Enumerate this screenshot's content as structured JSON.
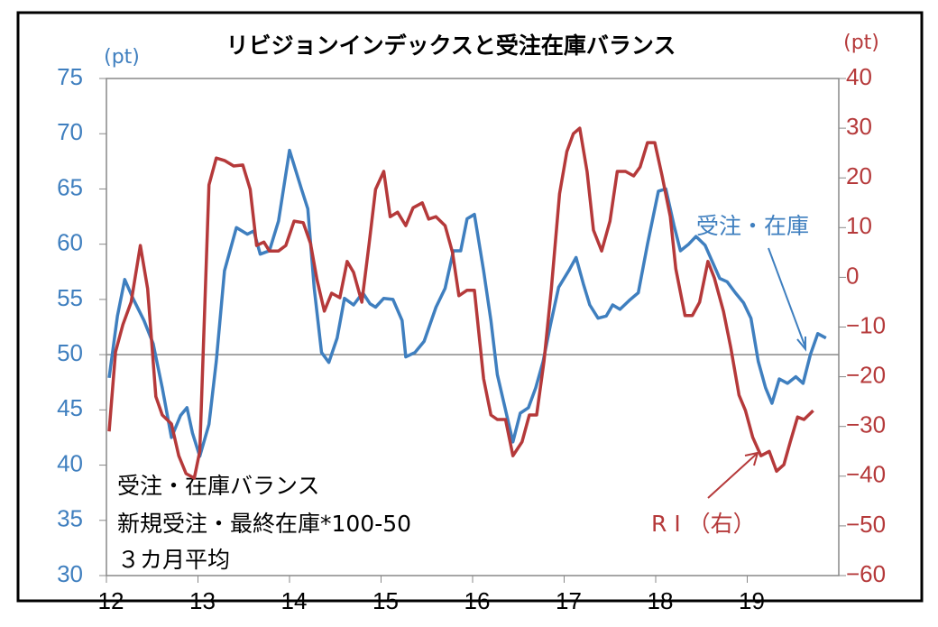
{
  "chart_data": {
    "type": "line",
    "title": "リビジョンインデックスと受注在庫バランス",
    "y_unit": "(pt)",
    "y2_unit": "(pt)",
    "xlim": [
      12,
      20
    ],
    "xticks": [
      12,
      13,
      14,
      15,
      16,
      17,
      18,
      19
    ],
    "ylim": [
      30,
      75
    ],
    "yticks": [
      30,
      35,
      40,
      45,
      50,
      55,
      60,
      65,
      70,
      75
    ],
    "y2lim": [
      -60,
      40
    ],
    "y2ticks": [
      {
        "value": -60,
        "label": "−60"
      },
      {
        "value": -50,
        "label": "−50"
      },
      {
        "value": -40,
        "label": "−40"
      },
      {
        "value": -30,
        "label": "−30"
      },
      {
        "value": -20,
        "label": "−20"
      },
      {
        "value": -10,
        "label": "−10"
      },
      0,
      10,
      20,
      30,
      40
    ],
    "reference_line": 50,
    "annotations": [
      "受注・在庫バランス",
      "新規受注・最終在庫*100-50",
      "３カ月平均"
    ],
    "series": [
      {
        "name": "受注・在庫",
        "color": "#3f7fbf",
        "axis": "y",
        "x": [
          12.03,
          12.12,
          12.2,
          12.29,
          12.41,
          12.51,
          12.61,
          12.71,
          12.81,
          12.88,
          12.94,
          13.02,
          13.12,
          13.2,
          13.29,
          13.42,
          13.54,
          13.61,
          13.68,
          13.78,
          13.88,
          14.0,
          14.13,
          14.2,
          14.27,
          14.35,
          14.43,
          14.52,
          14.6,
          14.7,
          14.8,
          14.88,
          14.94,
          15.03,
          15.13,
          15.23,
          15.27,
          15.37,
          15.47,
          15.6,
          15.7,
          15.79,
          15.87,
          15.94,
          16.02,
          16.12,
          16.2,
          16.27,
          16.44,
          16.52,
          16.61,
          16.69,
          16.77,
          16.85,
          16.94,
          17.05,
          17.13,
          17.21,
          17.28,
          17.37,
          17.46,
          17.53,
          17.61,
          17.71,
          17.81,
          17.91,
          18.03,
          18.11,
          18.2,
          18.27,
          18.36,
          18.44,
          18.54,
          18.62,
          18.7,
          18.78,
          18.87,
          18.96,
          19.04,
          19.12,
          19.2,
          19.27,
          19.35,
          19.44,
          19.53,
          19.61,
          19.69,
          19.77,
          19.86
        ],
        "values": [
          47.9,
          53.5,
          56.8,
          55.1,
          53.1,
          51,
          47,
          42.5,
          44.5,
          45.2,
          42.9,
          40.8,
          43.7,
          49.4,
          57.6,
          61.5,
          60.9,
          61.2,
          59.1,
          59.4,
          62.1,
          68.5,
          65,
          63.2,
          56,
          50.2,
          49.3,
          51.5,
          55.1,
          54.5,
          55.6,
          54.6,
          54.3,
          55.1,
          55,
          53.1,
          49.8,
          50.2,
          51.2,
          54.3,
          56,
          59.4,
          59.4,
          62.3,
          62.7,
          57.6,
          53.1,
          48.2,
          42.1,
          44.7,
          45.2,
          47,
          49.4,
          52.7,
          56.1,
          57.6,
          58.8,
          56.4,
          54.5,
          53.3,
          53.5,
          54.5,
          54.1,
          54.9,
          55.6,
          60,
          64.8,
          65,
          61.7,
          59.4,
          60,
          60.7,
          59.9,
          58.4,
          56.9,
          56.6,
          55.6,
          54.7,
          53.3,
          49.4,
          47,
          45.6,
          47.8,
          47.4,
          48,
          47.4,
          50,
          51.9,
          51.5
        ]
      },
      {
        "name": "R I （右）",
        "color": "#b5393a",
        "axis": "y2",
        "x": [
          12.03,
          12.1,
          12.18,
          12.27,
          12.37,
          12.45,
          12.54,
          12.61,
          12.71,
          12.79,
          12.87,
          12.96,
          13.02,
          13.12,
          13.2,
          13.29,
          13.39,
          13.49,
          13.57,
          13.64,
          13.72,
          13.78,
          13.88,
          13.96,
          14.05,
          14.15,
          14.23,
          14.3,
          14.38,
          14.46,
          14.55,
          14.63,
          14.7,
          14.79,
          14.87,
          14.94,
          15.03,
          15.1,
          15.18,
          15.27,
          15.35,
          15.45,
          15.52,
          15.6,
          15.7,
          15.78,
          15.85,
          15.94,
          16.02,
          16.12,
          16.2,
          16.27,
          16.36,
          16.44,
          16.54,
          16.62,
          16.7,
          16.78,
          16.86,
          16.95,
          17.03,
          17.1,
          17.17,
          17.25,
          17.32,
          17.41,
          17.5,
          17.58,
          17.67,
          17.76,
          17.83,
          17.91,
          17.99,
          18.07,
          18.16,
          18.22,
          18.32,
          18.4,
          18.48,
          18.57,
          18.64,
          18.74,
          18.82,
          18.91,
          18.98,
          19.06,
          19.15,
          19.24,
          19.32,
          19.4,
          19.47,
          19.55,
          19.62,
          19.72
        ],
        "values": [
          -31,
          -15,
          -9.5,
          -5,
          6.4,
          -2.3,
          -24,
          -27.7,
          -29.5,
          -35.9,
          -39.5,
          -40.4,
          -35,
          18.6,
          24,
          23.5,
          22.4,
          22.6,
          17.7,
          6.4,
          7.1,
          5.3,
          5.3,
          6.4,
          11.3,
          11,
          6.8,
          -0.5,
          -6.8,
          -3.2,
          -4.1,
          3.2,
          1,
          -5,
          6.8,
          17.7,
          21.3,
          12.2,
          13.1,
          10.4,
          14,
          15,
          11.7,
          12.2,
          10.4,
          5,
          -3.7,
          -2.6,
          -2.6,
          -20.4,
          -27.7,
          -28.6,
          -28.6,
          -35.9,
          -33.1,
          -27.7,
          -27.7,
          -16.8,
          -2.3,
          16.8,
          25.3,
          28.9,
          30,
          21.3,
          9.5,
          5.3,
          11.3,
          21.3,
          21.3,
          20.4,
          22.2,
          27.1,
          27.1,
          20.4,
          12.2,
          1.7,
          -7.7,
          -7.7,
          -5,
          3.2,
          -0.1,
          -6.8,
          -14.1,
          -23.7,
          -26.8,
          -32.2,
          -35.9,
          -35,
          -39,
          -37.7,
          -33.1,
          -28.1,
          -28.6,
          -26.8
        ]
      }
    ]
  }
}
